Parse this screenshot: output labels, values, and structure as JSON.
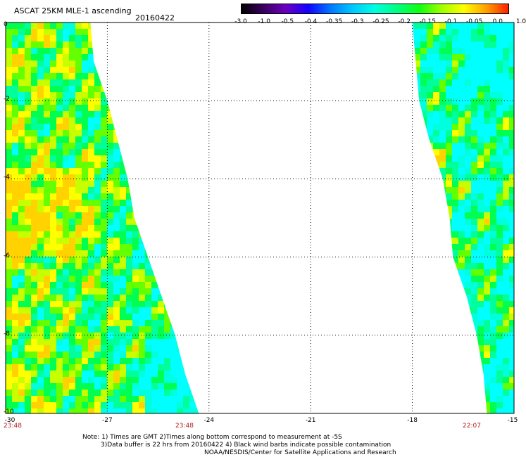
{
  "header": {
    "title": "ASCAT 25KM MLE-1 ascending",
    "date": "20160422"
  },
  "colorbar": {
    "labels": [
      "-3.0",
      "-1.0",
      "-0.5",
      "-0.4",
      "-0.35",
      "-0.3",
      "-0.25",
      "-0.2",
      "-0.15",
      "-0.1",
      "-0.05",
      "0.0",
      "1.0"
    ],
    "colors": [
      "#000000",
      "#3a0060",
      "#6a00c0",
      "#1400ff",
      "#0078ff",
      "#00c8ff",
      "#00ffe0",
      "#00ff80",
      "#10ff10",
      "#a0ff00",
      "#ffff00",
      "#ffa000",
      "#ff2000"
    ]
  },
  "map": {
    "lon_range": [
      -30,
      -15
    ],
    "lat_range": [
      -10,
      0
    ],
    "x_ticks": [
      "-30",
      "-27",
      "-24",
      "-21",
      "-18",
      "-15"
    ],
    "y_ticks": [
      "0",
      "-2",
      "-4",
      "-6",
      "-8",
      "-10"
    ],
    "pass_times": [
      "23:48",
      "23:48",
      "22:07"
    ],
    "swaths": [
      {
        "name": "west swath",
        "lon_start": -30,
        "lat_start": 0,
        "edge": [
          [
            -27.5,
            0
          ],
          [
            -27.4,
            -1
          ],
          [
            -27.0,
            -2
          ],
          [
            -26.7,
            -3
          ],
          [
            -26.4,
            -4
          ],
          [
            -26.2,
            -5
          ],
          [
            -25.8,
            -6
          ],
          [
            -25.4,
            -7
          ],
          [
            -25.0,
            -8
          ],
          [
            -24.7,
            -9
          ],
          [
            -24.3,
            -10
          ]
        ]
      },
      {
        "name": "east swath",
        "lon_end": -15,
        "lat_start": 0,
        "edge": [
          [
            -18.0,
            0
          ],
          [
            -17.9,
            -1
          ],
          [
            -17.8,
            -2
          ],
          [
            -17.5,
            -3
          ],
          [
            -17.1,
            -4
          ],
          [
            -16.9,
            -5
          ],
          [
            -16.8,
            -6
          ],
          [
            -16.4,
            -7
          ],
          [
            -16.1,
            -8
          ],
          [
            -15.9,
            -9
          ],
          [
            -15.8,
            -10
          ]
        ]
      }
    ]
  },
  "notes": {
    "line1": "Note: 1) Times are GMT 2)Times along bottom correspond to measurement at -5S",
    "line2": "3)Data buffer is 22 hrs from 20160422 4) Black wind barbs indicate possible contamination",
    "line3": "NOAA/NESDIS/Center for Satellite Applications and Research"
  }
}
